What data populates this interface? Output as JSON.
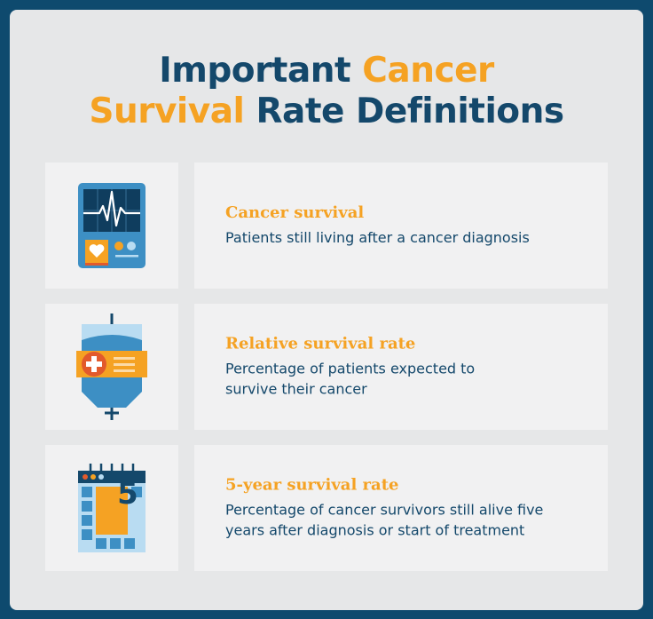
{
  "title": {
    "line1_a": "Important ",
    "line1_b": "Cancer",
    "line2_a": "Survival",
    "line2_b": " Rate Definitions"
  },
  "items": [
    {
      "icon": "heart-monitor-icon",
      "title": "Cancer survival",
      "description": "Patients still living after a cancer diagnosis"
    },
    {
      "icon": "iv-bag-icon",
      "title": "Relative survival rate",
      "description": "Percentage of patients expected to survive their cancer"
    },
    {
      "icon": "calendar-icon",
      "title": "5-year survival rate",
      "description": "Percentage of cancer survivors still alive five years after diagnosis or start of treatment",
      "calendar_number": "5"
    }
  ],
  "colors": {
    "navy": "#14486b",
    "orange": "#f5a223",
    "background": "#0e4a6e",
    "card": "#e6e7e8",
    "panel": "#f1f1f2"
  }
}
